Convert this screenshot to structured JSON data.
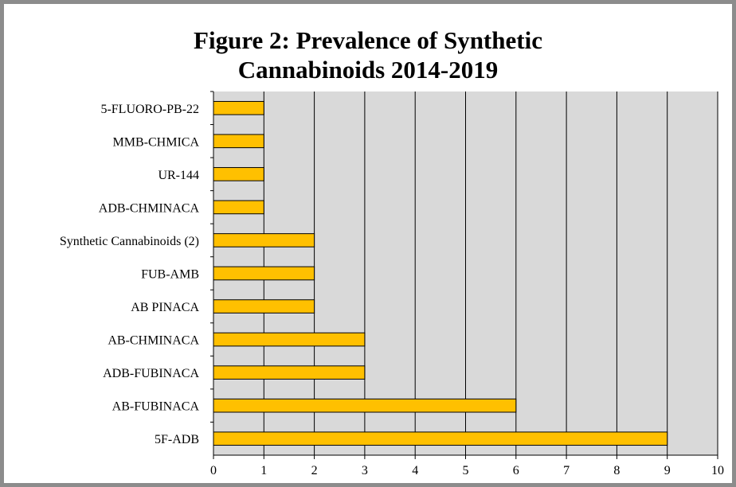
{
  "chart_data": {
    "type": "bar",
    "orientation": "horizontal",
    "title_lines": [
      "Figure 2: Prevalence of Synthetic",
      "Cannabinoids 2014-2019"
    ],
    "categories": [
      "5-FLUORO-PB-22",
      "MMB-CHMICA",
      "UR-144",
      "ADB-CHMINACA",
      "Synthetic Cannabinoids (2)",
      "FUB-AMB",
      "AB PINACA",
      "AB-CHMINACA",
      "ADB-FUBINACA",
      "AB-FUBINACA",
      "5F-ADB"
    ],
    "values": [
      1,
      1,
      1,
      1,
      2,
      2,
      2,
      3,
      3,
      6,
      9
    ],
    "xlim": [
      0,
      10
    ],
    "xticks": [
      "0",
      "1",
      "2",
      "3",
      "4",
      "5",
      "6",
      "7",
      "8",
      "9",
      "10"
    ],
    "grid": "vertical",
    "legend": "none",
    "colors": {
      "bar_fill": "#FFC000",
      "bar_stroke": "#000000",
      "plot_background": "#D9D9D9",
      "gridline": "#000000",
      "frame_border": "#8C8C8C"
    }
  }
}
